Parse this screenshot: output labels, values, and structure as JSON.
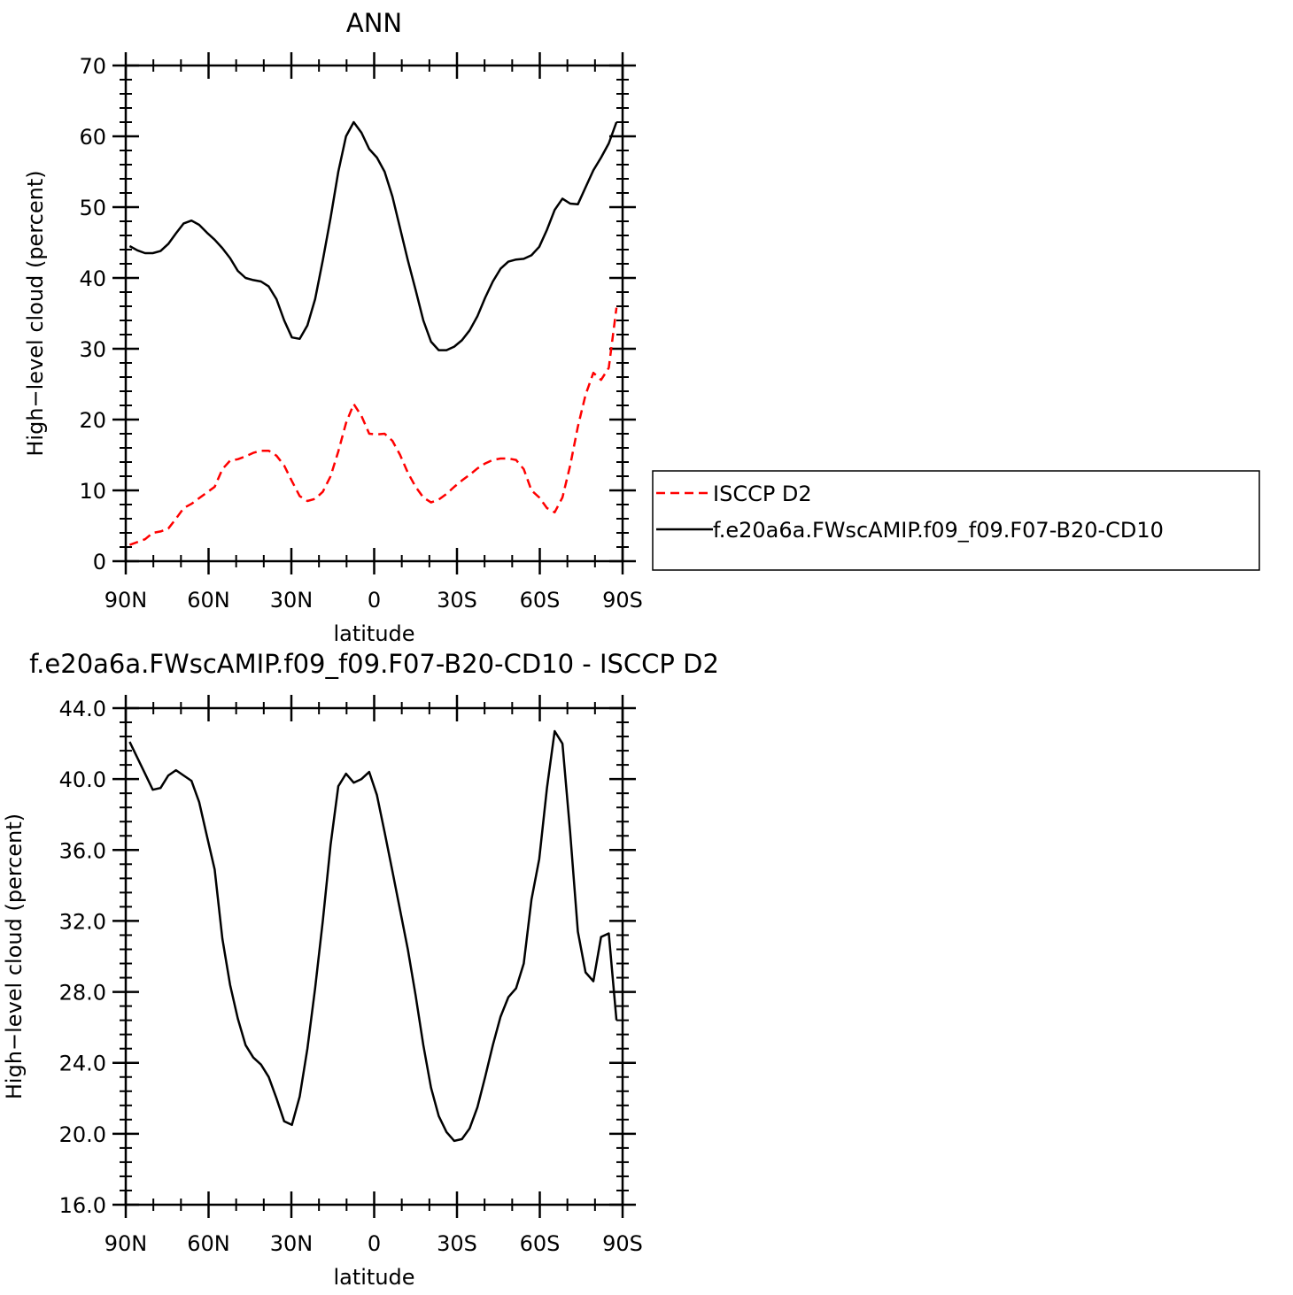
{
  "chart_data": [
    {
      "type": "line",
      "title": "ANN",
      "xlabel": "latitude",
      "ylabel": "High−level cloud (percent)",
      "x": [
        88.6,
        85.8,
        83,
        80.2,
        77.4,
        74.6,
        71.8,
        69,
        66.2,
        63.4,
        60.6,
        57.8,
        55,
        52.2,
        49.4,
        46.6,
        43.8,
        41,
        38.2,
        35.4,
        32.6,
        29.8,
        27,
        24.2,
        21.4,
        18.6,
        15.8,
        13,
        10.2,
        7.4,
        4.6,
        1.8,
        -1,
        -3.8,
        -6.6,
        -9.4,
        -12.2,
        -15,
        -17.8,
        -20.6,
        -23.4,
        -26.2,
        -29,
        -31.8,
        -34.6,
        -37.4,
        -40.2,
        -43,
        -45.8,
        -48.6,
        -51.4,
        -54.2,
        -57,
        -59.8,
        -62.6,
        -65.4,
        -68.2,
        -71,
        -73.8,
        -76.6,
        -79.4,
        -82.2,
        -85,
        -87.8
      ],
      "xlim": [
        90,
        -90
      ],
      "xticks": [
        {
          "value": 90,
          "label": "90N"
        },
        {
          "value": 60,
          "label": "60N"
        },
        {
          "value": 30,
          "label": "30N"
        },
        0,
        {
          "value": -30,
          "label": "30S"
        },
        {
          "value": -60,
          "label": "60S"
        },
        {
          "value": -90,
          "label": "90S"
        }
      ],
      "ylim": [
        0,
        70
      ],
      "yticks": [
        0,
        10,
        20,
        30,
        40,
        50,
        60,
        70
      ],
      "legend": "right",
      "series": [
        {
          "name": "ISCCP D2",
          "color": "#ff0000",
          "linestyle": "dashed",
          "values": [
            2.3,
            2.7,
            3.1,
            4,
            4.2,
            4.6,
            6,
            7.5,
            8.1,
            8.9,
            9.7,
            10.5,
            13,
            14.2,
            14.4,
            14.8,
            15.3,
            15.6,
            15.6,
            14.9,
            13.5,
            11.3,
            9.2,
            8.5,
            8.8,
            9.8,
            12,
            15.5,
            19.5,
            22.2,
            20.5,
            18,
            17.9,
            18,
            17,
            15,
            12.5,
            10.5,
            9,
            8.3,
            8.7,
            9.5,
            10.5,
            11.4,
            12.2,
            13.1,
            13.8,
            14.3,
            14.5,
            14.5,
            14.3,
            13,
            10,
            9,
            7.5,
            6.9,
            9,
            13.5,
            19,
            23.5,
            26.6,
            25.6,
            27.3,
            35.8
          ]
        },
        {
          "name": "f.e20a6a.FWscAMIP.f09_f09.F07-B20-CD10",
          "color": "#000000",
          "linestyle": "solid",
          "values": [
            44.5,
            43.9,
            43.5,
            43.5,
            43.8,
            44.8,
            46.3,
            47.7,
            48.1,
            47.5,
            46.4,
            45.4,
            44.2,
            42.8,
            41,
            40,
            39.7,
            39.5,
            38.8,
            37,
            34,
            31.6,
            31.4,
            33.3,
            37,
            42.5,
            48.5,
            55,
            60,
            62,
            60.5,
            58.2,
            57,
            55,
            51.5,
            47,
            42.5,
            38.3,
            34,
            31,
            29.8,
            29.8,
            30.3,
            31.2,
            32.6,
            34.6,
            37.2,
            39.5,
            41.3,
            42.3,
            42.6,
            42.7,
            43.2,
            44.4,
            46.8,
            49.6,
            51.2,
            50.5,
            50.4,
            52.8,
            55.2,
            57,
            59,
            62
          ]
        }
      ]
    },
    {
      "type": "line",
      "title": "f.e20a6a.FWscAMIP.f09_f09.F07-B20-CD10 - ISCCP D2",
      "xlabel": "latitude",
      "ylabel": "High−level cloud (percent)",
      "x": [
        88.6,
        85.8,
        83,
        80.2,
        77.4,
        74.6,
        71.8,
        69,
        66.2,
        63.4,
        60.6,
        57.8,
        55,
        52.2,
        49.4,
        46.6,
        43.8,
        41,
        38.2,
        35.4,
        32.6,
        29.8,
        27,
        24.2,
        21.4,
        18.6,
        15.8,
        13,
        10.2,
        7.4,
        4.6,
        1.8,
        -1,
        -3.8,
        -6.6,
        -9.4,
        -12.2,
        -15,
        -17.8,
        -20.6,
        -23.4,
        -26.2,
        -29,
        -31.8,
        -34.6,
        -37.4,
        -40.2,
        -43,
        -45.8,
        -48.6,
        -51.4,
        -54.2,
        -57,
        -59.8,
        -62.6,
        -65.4,
        -68.2,
        -71,
        -73.8,
        -76.6,
        -79.4,
        -82.2,
        -85,
        -87.8
      ],
      "xlim": [
        90,
        -90
      ],
      "xticks": [
        {
          "value": 90,
          "label": "90N"
        },
        {
          "value": 60,
          "label": "60N"
        },
        {
          "value": 30,
          "label": "30N"
        },
        0,
        {
          "value": -30,
          "label": "30S"
        },
        {
          "value": -60,
          "label": "60S"
        },
        {
          "value": -90,
          "label": "90S"
        }
      ],
      "ylim": [
        16,
        44
      ],
      "yticks": [
        {
          "value": 16,
          "label": "16.0"
        },
        {
          "value": 20,
          "label": "20.0"
        },
        {
          "value": 24,
          "label": "24.0"
        },
        {
          "value": 28,
          "label": "28.0"
        },
        {
          "value": 32,
          "label": "32.0"
        },
        {
          "value": 36,
          "label": "36.0"
        },
        {
          "value": 40,
          "label": "40.0"
        },
        {
          "value": 44,
          "label": "44.0"
        }
      ],
      "color": "#000000",
      "values": [
        42.1,
        41.2,
        40.3,
        39.4,
        39.5,
        40.2,
        40.5,
        40.2,
        39.9,
        38.7,
        36.8,
        34.9,
        31,
        28.4,
        26.5,
        25,
        24.3,
        23.9,
        23.2,
        22,
        20.7,
        20.5,
        22.1,
        24.8,
        28.2,
        32,
        36.3,
        39.6,
        40.3,
        39.8,
        40,
        40.4,
        39.1,
        37,
        34.8,
        32.6,
        30.4,
        27.8,
        25,
        22.6,
        21,
        20.1,
        19.6,
        19.7,
        20.3,
        21.5,
        23.2,
        25,
        26.6,
        27.7,
        28.2,
        29.6,
        33.2,
        35.5,
        39.5,
        42.7,
        42,
        37,
        31.4,
        29.1,
        28.6,
        31.1,
        31.3,
        26.4
      ]
    }
  ]
}
